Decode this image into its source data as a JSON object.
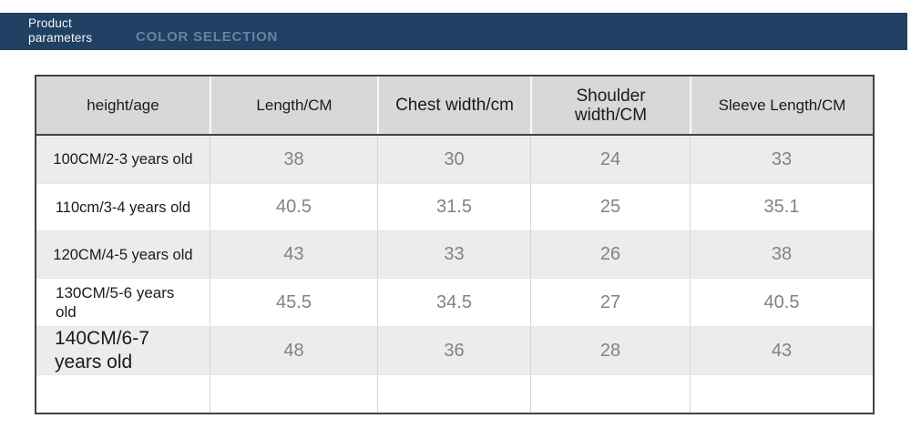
{
  "banner": {
    "product_label": "Product parameters",
    "color_selection_label": "COLOR SELECTION",
    "bg_color": "#204064",
    "muted_text_color": "#69829f"
  },
  "size_table": {
    "columns": [
      "height/age",
      "Length/CM",
      "Chest width/cm",
      "Shoulder width/CM",
      "Sleeve Length/CM"
    ],
    "rows": [
      {
        "label": "100CM/2-3 years old",
        "values": [
          "38",
          "30",
          "24",
          "33"
        ]
      },
      {
        "label": "110cm/3-4 years old",
        "values": [
          "40.5",
          "31.5",
          "25",
          "35.1"
        ]
      },
      {
        "label": "120CM/4-5 years old",
        "values": [
          "43",
          "33",
          "26",
          "38"
        ]
      },
      {
        "label": "130CM/5-6 years old",
        "values": [
          "45.5",
          "34.5",
          "27",
          "40.5"
        ]
      },
      {
        "label": "140CM/6-7 years old",
        "values": [
          "48",
          "36",
          "28",
          "43"
        ]
      }
    ],
    "colors": {
      "header_bg": "#d8d8d8",
      "alt_row_bg": "#ececec",
      "outer_border": "#424242",
      "grid_line": "#d4d4d4",
      "number_text": "#828282",
      "label_text": "#1b1b1b"
    }
  }
}
